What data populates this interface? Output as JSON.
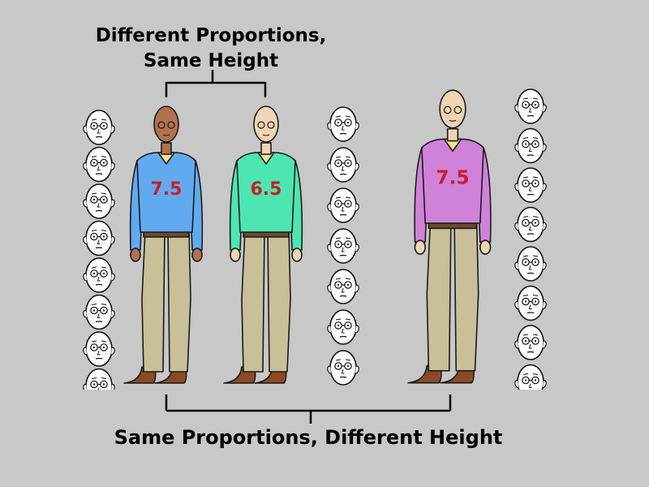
{
  "captions": {
    "top_line1": "Different Proportions,",
    "top_line2": "Same Height",
    "bottom": "Same Proportions, Different Height"
  },
  "figures": [
    {
      "id": "figure-blue",
      "proportion_label": "7.5",
      "head_count": 7.5,
      "sweater_color": "#62aaf0",
      "skin_color": "#b27150"
    },
    {
      "id": "figure-green",
      "proportion_label": "6.5",
      "head_count": 6.5,
      "sweater_color": "#4de6b1",
      "skin_color": "#f0d5b4"
    },
    {
      "id": "figure-purple",
      "proportion_label": "7.5",
      "head_count": 7.5,
      "sweater_color": "#cf82d8",
      "skin_color": "#f0d5b4"
    }
  ],
  "head_columns": [
    {
      "id": "left",
      "heads": 8
    },
    {
      "id": "middle",
      "heads": 7
    },
    {
      "id": "right",
      "heads": 8
    }
  ],
  "colors": {
    "background": "#c8c8c8",
    "pants": "#c9bf98",
    "shoes": "#8b4a24",
    "number_text": "#c81e2c"
  }
}
